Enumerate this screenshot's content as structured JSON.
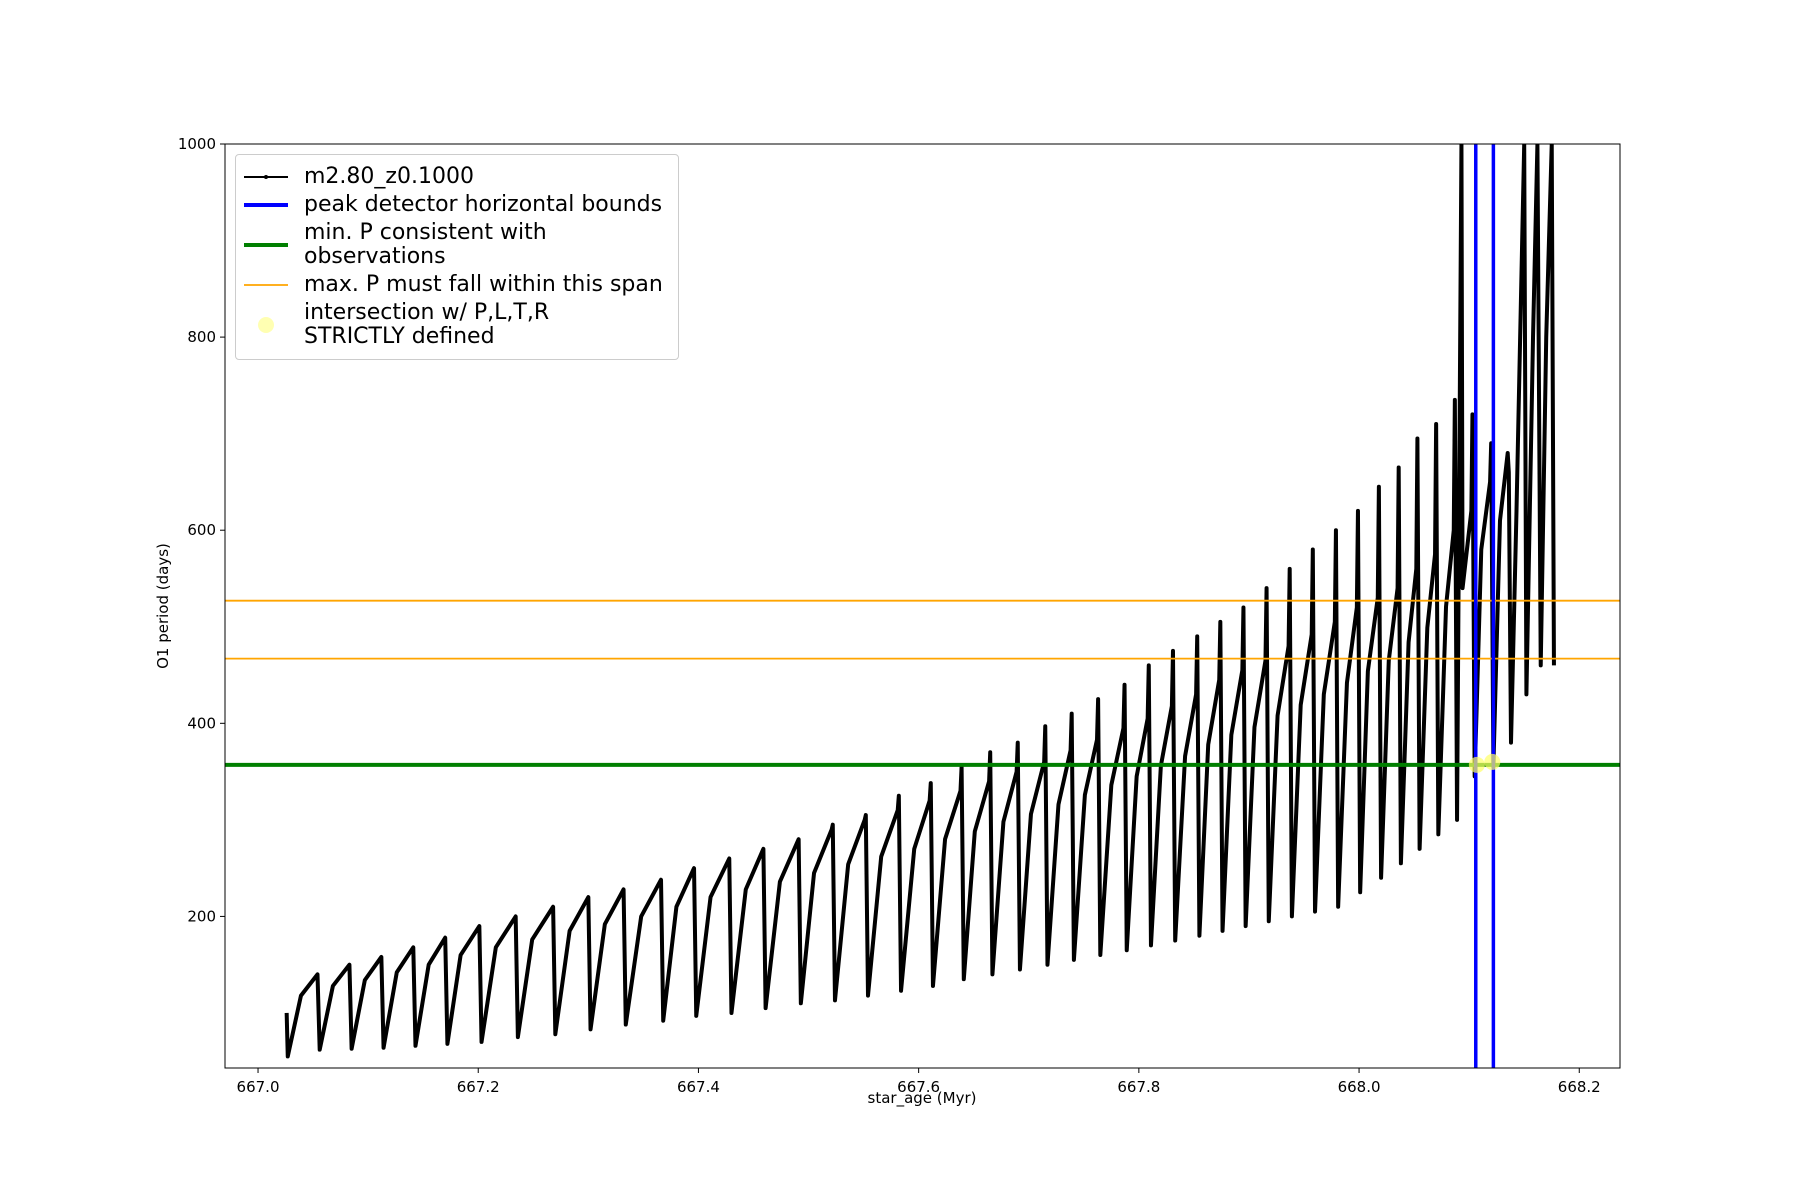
{
  "chart_data": {
    "type": "line",
    "xlabel": "star_age (Myr)",
    "ylabel": "O1 period (days)",
    "xlim": [
      666.97,
      668.237
    ],
    "ylim": [
      43,
      1000
    ],
    "xticks": [
      {
        "value": 667.0,
        "label": "667.0"
      },
      667.2,
      667.4,
      667.6,
      667.8,
      {
        "value": 668.0,
        "label": "668.0"
      },
      668.2
    ],
    "yticks": [
      200,
      400,
      600,
      800,
      1000
    ],
    "legend": "upper left",
    "series": [
      {
        "name": "m2.80_z0.1000",
        "type": "line",
        "color": "#000000",
        "x": [
          667.026,
          667.027,
          667.039,
          667.054,
          667.056,
          667.068,
          667.083,
          667.085,
          667.097,
          667.112,
          667.114,
          667.126,
          667.141,
          667.143,
          667.155,
          667.17,
          667.172,
          667.184,
          667.201,
          667.203,
          667.216,
          667.234,
          667.236,
          667.249,
          667.268,
          667.27,
          667.283,
          667.3,
          667.302,
          667.315,
          667.332,
          667.334,
          667.348,
          667.366,
          667.368,
          667.38,
          667.396,
          667.398,
          667.411,
          667.428,
          667.43,
          667.443,
          667.459,
          667.461,
          667.474,
          667.491,
          667.493,
          667.505,
          667.521,
          667.522,
          667.524,
          667.536,
          667.551,
          667.552,
          667.554,
          667.566,
          667.581,
          667.582,
          667.584,
          667.596,
          667.61,
          667.611,
          667.613,
          667.624,
          667.638,
          667.639,
          667.641,
          667.651,
          667.664,
          667.665,
          667.667,
          667.677,
          667.689,
          667.69,
          667.692,
          667.702,
          667.714,
          667.715,
          667.717,
          667.727,
          667.738,
          667.739,
          667.741,
          667.751,
          667.762,
          667.763,
          667.765,
          667.775,
          667.786,
          667.787,
          667.789,
          667.798,
          667.808,
          667.809,
          667.811,
          667.82,
          667.83,
          667.831,
          667.833,
          667.842,
          667.852,
          667.853,
          667.855,
          667.863,
          667.873,
          667.874,
          667.876,
          667.884,
          667.894,
          667.895,
          667.897,
          667.905,
          667.915,
          667.916,
          667.918,
          667.926,
          667.936,
          667.937,
          667.939,
          667.947,
          667.957,
          667.958,
          667.96,
          667.968,
          667.978,
          667.979,
          667.981,
          667.989,
          667.998,
          667.999,
          668.001,
          668.008,
          668.017,
          668.018,
          668.02,
          668.027,
          668.035,
          668.036,
          668.038,
          668.045,
          668.052,
          668.053,
          668.055,
          668.062,
          668.069,
          668.07,
          668.072,
          668.079,
          668.086,
          668.087,
          668.089,
          668.093,
          668.094,
          668.102,
          668.103,
          668.105,
          668.111,
          668.119,
          668.12,
          668.122,
          668.128,
          668.135,
          668.136,
          668.138,
          668.143,
          668.15,
          668.152,
          668.158,
          668.162,
          668.165,
          668.17,
          668.175,
          668.177
        ],
        "values": [
          100,
          55,
          118,
          140,
          62,
          128,
          150,
          63,
          134,
          158,
          64,
          142,
          168,
          66,
          150,
          178,
          68,
          160,
          190,
          70,
          168,
          200,
          75,
          176,
          210,
          78,
          185,
          220,
          83,
          192,
          228,
          88,
          200,
          238,
          92,
          210,
          250,
          97,
          220,
          260,
          100,
          228,
          270,
          105,
          236,
          280,
          110,
          245,
          290,
          295,
          113,
          254,
          300,
          305,
          118,
          262,
          310,
          325,
          123,
          270,
          320,
          338,
          128,
          280,
          330,
          355,
          135,
          288,
          340,
          370,
          140,
          298,
          350,
          380,
          145,
          306,
          360,
          397,
          150,
          316,
          372,
          410,
          155,
          326,
          383,
          425,
          160,
          336,
          395,
          440,
          165,
          345,
          405,
          460,
          170,
          356,
          418,
          475,
          175,
          366,
          430,
          490,
          180,
          378,
          445,
          505,
          185,
          388,
          455,
          520,
          190,
          396,
          465,
          540,
          195,
          408,
          480,
          560,
          200,
          419,
          492,
          580,
          205,
          430,
          505,
          600,
          210,
          442,
          520,
          620,
          225,
          454,
          530,
          645,
          240,
          465,
          540,
          665,
          255,
          484,
          560,
          695,
          270,
          499,
          575,
          710,
          285,
          521,
          600,
          735,
          300,
          1000,
          540,
          620,
          720,
          345,
          580,
          650,
          690,
          355,
          610,
          680,
          660,
          380,
          620,
          1000,
          430,
          800,
          1000,
          460,
          800,
          1000,
          460
        ]
      },
      {
        "name": "peak detector horizontal bounds",
        "type": "vline",
        "color": "#0000ff",
        "x": [
          668.106,
          668.122
        ]
      },
      {
        "name": "min. P consistent with observations",
        "type": "hline",
        "color": "#007f00",
        "values": [
          357
        ]
      },
      {
        "name": "max. P must fall within this span",
        "type": "hline",
        "color": "#ffa500",
        "values": [
          467,
          527
        ]
      },
      {
        "name": "intersection w/ P,L,T,R\nSTRICTLY defined",
        "type": "scatter",
        "color": "#ffff66",
        "x": [
          668.107,
          668.121
        ],
        "values": [
          357,
          360
        ]
      }
    ]
  }
}
